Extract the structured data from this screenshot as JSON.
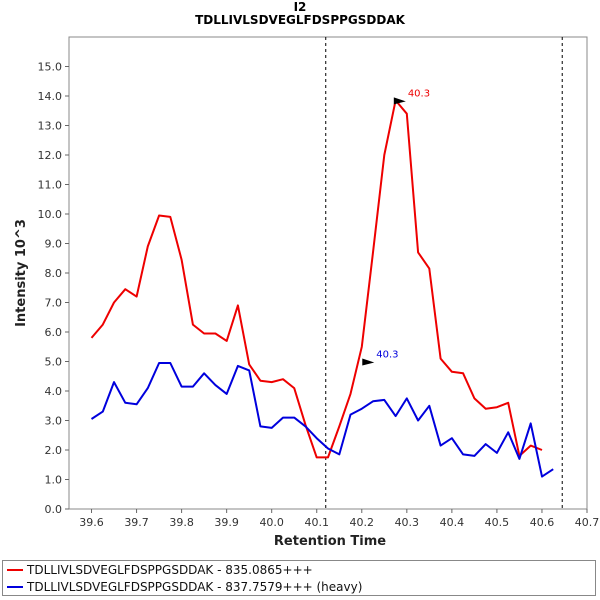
{
  "chart_data": {
    "type": "line",
    "title": "I2",
    "subtitle": "TDLLIVLSDVEGLFDSPPGSDDAK",
    "xlabel": "Retention Time",
    "ylabel": "Intensity 10^3",
    "xlim": [
      39.55,
      40.7
    ],
    "ylim": [
      0.0,
      16.0
    ],
    "x_ticks": [
      "39.6",
      "39.7",
      "39.8",
      "39.9",
      "40.0",
      "40.1",
      "40.2",
      "40.3",
      "40.4",
      "40.5",
      "40.6",
      "40.7"
    ],
    "y_ticks": [
      "0.0",
      "1.0",
      "2.0",
      "3.0",
      "4.0",
      "5.0",
      "6.0",
      "7.0",
      "8.0",
      "9.0",
      "10.0",
      "11.0",
      "12.0",
      "13.0",
      "14.0",
      "15.0"
    ],
    "vlines": [
      40.12,
      40.645
    ],
    "series": [
      {
        "name": "TDLLIVLSDVEGLFDSPPGSDDAK - 835.0865+++",
        "color": "#ee0000",
        "x": [
          39.6,
          39.625,
          39.65,
          39.675,
          39.7,
          39.725,
          39.75,
          39.775,
          39.8,
          39.825,
          39.85,
          39.875,
          39.9,
          39.925,
          39.95,
          39.975,
          40.0,
          40.025,
          40.05,
          40.075,
          40.1,
          40.125,
          40.15,
          40.175,
          40.2,
          40.225,
          40.25,
          40.275,
          40.3,
          40.325,
          40.35,
          40.375,
          40.4,
          40.425,
          40.45,
          40.475,
          40.5,
          40.525,
          40.55,
          40.575,
          40.6,
          40.625,
          40.65
        ],
        "values": [
          5.8,
          6.25,
          7.0,
          7.45,
          7.2,
          8.9,
          9.95,
          9.9,
          8.45,
          6.25,
          5.95,
          5.95,
          5.7,
          6.9,
          4.9,
          4.35,
          4.3,
          4.4,
          4.1,
          2.85,
          1.75,
          1.75,
          2.8,
          3.9,
          5.5,
          8.7,
          12.0,
          13.85,
          13.4,
          8.7,
          8.15,
          5.1,
          4.65,
          4.6,
          3.75,
          3.4,
          3.45,
          3.6,
          1.8,
          2.15,
          2.0,
          null,
          null
        ],
        "annotation": {
          "x": 40.3,
          "y": 13.85,
          "label": "40.3"
        }
      },
      {
        "name": "TDLLIVLSDVEGLFDSPPGSDDAK - 837.7579+++ (heavy)",
        "color": "#0000dd",
        "x": [
          39.6,
          39.625,
          39.65,
          39.675,
          39.7,
          39.725,
          39.75,
          39.775,
          39.8,
          39.825,
          39.85,
          39.875,
          39.9,
          39.925,
          39.95,
          39.975,
          40.0,
          40.025,
          40.05,
          40.075,
          40.1,
          40.125,
          40.15,
          40.175,
          40.2,
          40.225,
          40.25,
          40.275,
          40.3,
          40.325,
          40.35,
          40.375,
          40.4,
          40.425,
          40.45,
          40.475,
          40.5,
          40.525,
          40.55,
          40.575,
          40.6,
          40.625,
          40.65
        ],
        "values": [
          3.05,
          3.3,
          4.3,
          3.6,
          3.55,
          4.1,
          4.95,
          4.95,
          4.15,
          4.15,
          4.6,
          4.2,
          3.9,
          4.85,
          4.7,
          2.8,
          2.75,
          3.1,
          3.1,
          2.8,
          2.4,
          2.05,
          1.85,
          3.2,
          3.4,
          3.65,
          3.7,
          3.15,
          3.75,
          3.0,
          3.5,
          2.15,
          2.4,
          1.85,
          1.8,
          2.2,
          1.9,
          2.6,
          1.7,
          2.9,
          1.1,
          1.35,
          null
        ],
        "annotation": {
          "x": 40.23,
          "y": 5.0,
          "label": "40.3"
        }
      }
    ]
  }
}
